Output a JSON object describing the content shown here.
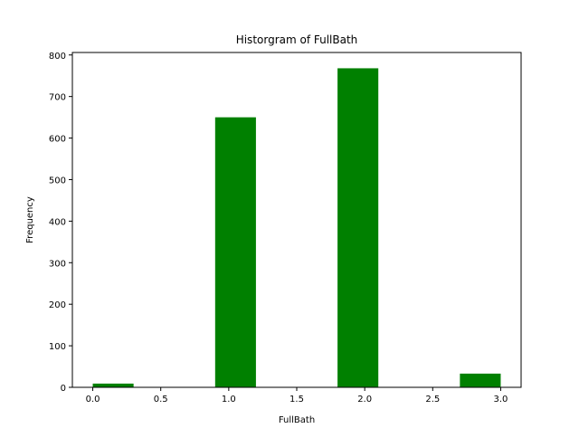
{
  "chart_data": {
    "type": "bar",
    "title": "Historgram of FullBath",
    "xlabel": "FullBath",
    "ylabel": "Frequency",
    "xlim": [
      -0.15,
      3.15
    ],
    "ylim": [
      0,
      806
    ],
    "x_ticks": [
      0.0,
      0.5,
      1.0,
      1.5,
      2.0,
      2.5,
      3.0
    ],
    "x_tick_labels": [
      "0.0",
      "0.5",
      "1.0",
      "1.5",
      "2.0",
      "2.5",
      "3.0"
    ],
    "y_ticks": [
      0,
      100,
      200,
      300,
      400,
      500,
      600,
      700,
      800
    ],
    "y_tick_labels": [
      "0",
      "100",
      "200",
      "300",
      "400",
      "500",
      "600",
      "700",
      "800"
    ],
    "bins": [
      {
        "x0": 0.0,
        "x1": 0.3,
        "count": 9
      },
      {
        "x0": 0.3,
        "x1": 0.6,
        "count": 0
      },
      {
        "x0": 0.6,
        "x1": 0.9,
        "count": 0
      },
      {
        "x0": 0.9,
        "x1": 1.2,
        "count": 650
      },
      {
        "x0": 1.2,
        "x1": 1.5,
        "count": 0
      },
      {
        "x0": 1.5,
        "x1": 1.8,
        "count": 0
      },
      {
        "x0": 1.8,
        "x1": 2.1,
        "count": 768
      },
      {
        "x0": 2.1,
        "x1": 2.4,
        "count": 0
      },
      {
        "x0": 2.4,
        "x1": 2.7,
        "count": 0
      },
      {
        "x0": 2.7,
        "x1": 3.0,
        "count": 33
      }
    ],
    "bar_color": "#008000",
    "grid": false,
    "legend": false
  }
}
